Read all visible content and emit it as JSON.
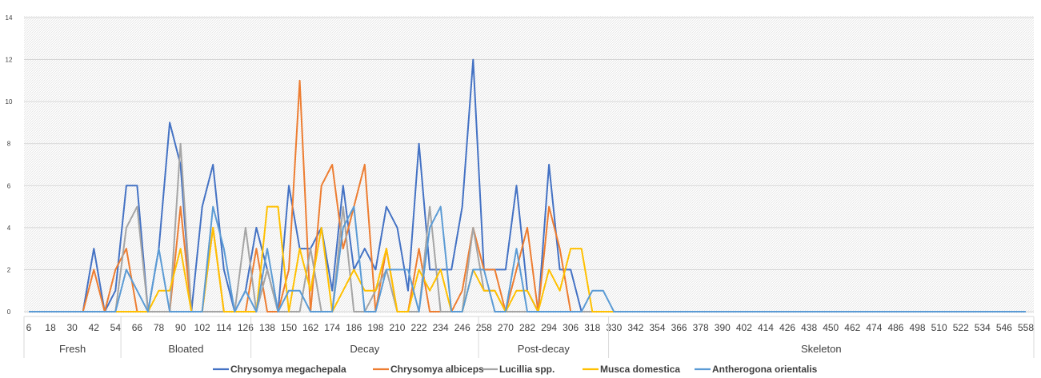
{
  "chart_data": {
    "type": "line",
    "title": "",
    "xlabel": "",
    "ylabel": "",
    "ylim": [
      0,
      14
    ],
    "yticks": [
      "0",
      "2",
      "4",
      "6",
      "8",
      "10",
      "12",
      "14"
    ],
    "x": [
      6,
      12,
      18,
      24,
      30,
      36,
      42,
      48,
      54,
      60,
      66,
      72,
      78,
      84,
      90,
      96,
      102,
      108,
      114,
      120,
      126,
      132,
      138,
      144,
      150,
      156,
      162,
      168,
      174,
      180,
      186,
      192,
      198,
      204,
      210,
      216,
      222,
      228,
      234,
      240,
      246,
      252,
      258,
      264,
      270,
      276,
      282,
      288,
      294,
      300,
      306,
      312,
      318,
      324,
      330,
      336,
      342,
      348,
      354,
      360,
      366,
      372,
      378,
      384,
      390,
      396,
      402,
      408,
      414,
      420,
      426,
      432,
      438,
      444,
      450,
      456,
      462,
      468,
      474,
      480,
      486,
      492,
      498,
      504,
      510,
      516,
      522,
      528,
      534,
      540,
      546,
      552,
      558
    ],
    "xtick_labels": [
      "6",
      "18",
      "30",
      "42",
      "54",
      "66",
      "78",
      "90",
      "102",
      "114",
      "126",
      "138",
      "150",
      "162",
      "174",
      "186",
      "198",
      "210",
      "222",
      "234",
      "246",
      "258",
      "270",
      "282",
      "294",
      "306",
      "318",
      "330",
      "342",
      "354",
      "366",
      "378",
      "390",
      "402",
      "414",
      "426",
      "438",
      "450",
      "462",
      "474",
      "486",
      "498",
      "510",
      "522",
      "534",
      "546",
      "558"
    ],
    "grid": "dense-hatch",
    "legend_position": "bottom",
    "stages": [
      {
        "label": "Fresh",
        "from": 0,
        "to": 8
      },
      {
        "label": "Bloated",
        "from": 9,
        "to": 20
      },
      {
        "label": "Decay",
        "from": 21,
        "to": 41
      },
      {
        "label": "Post-decay",
        "from": 42,
        "to": 53
      },
      {
        "label": "Skeleton",
        "from": 54,
        "to": 92
      }
    ],
    "series": [
      {
        "name": "Chrysomya megachepala",
        "color": "#4472C4",
        "values": [
          0,
          0,
          0,
          0,
          0,
          0,
          3,
          0,
          1,
          6,
          6,
          0,
          3,
          9,
          7,
          0,
          5,
          7,
          2,
          0,
          1,
          4,
          2,
          0,
          6,
          3,
          3,
          4,
          1,
          6,
          2,
          3,
          2,
          5,
          4,
          1,
          8,
          2,
          2,
          2,
          5,
          12,
          2,
          2,
          2,
          6,
          1,
          0,
          7,
          2,
          2,
          0,
          0,
          0,
          0,
          0,
          0,
          0,
          0,
          0,
          0,
          0,
          0,
          0,
          0,
          0,
          0,
          0,
          0,
          0,
          0,
          0,
          0,
          0,
          0,
          0,
          0,
          0,
          0,
          0,
          0,
          0,
          0,
          0,
          0,
          0,
          0,
          0,
          0,
          0,
          0,
          0,
          0
        ]
      },
      {
        "name": "Chrysomya albiceps",
        "color": "#ED7D31",
        "values": [
          0,
          0,
          0,
          0,
          0,
          0,
          2,
          0,
          2,
          3,
          0,
          0,
          0,
          0,
          5,
          0,
          0,
          4,
          0,
          0,
          0,
          3,
          0,
          0,
          2,
          11,
          0,
          6,
          7,
          3,
          5,
          7,
          0,
          3,
          0,
          0,
          3,
          0,
          0,
          0,
          1,
          4,
          2,
          2,
          0,
          2,
          4,
          0,
          5,
          3,
          0,
          0,
          0,
          0,
          0,
          0,
          0,
          0,
          0,
          0,
          0,
          0,
          0,
          0,
          0,
          0,
          0,
          0,
          0,
          0,
          0,
          0,
          0,
          0,
          0,
          0,
          0,
          0,
          0,
          0,
          0,
          0,
          0,
          0,
          0,
          0,
          0,
          0,
          0,
          0,
          0,
          0,
          0
        ]
      },
      {
        "name": "Lucillia spp.",
        "color": "#A5A5A5",
        "values": [
          0,
          0,
          0,
          0,
          0,
          0,
          0,
          0,
          0,
          4,
          5,
          0,
          0,
          0,
          8,
          0,
          0,
          0,
          0,
          0,
          4,
          0,
          2,
          0,
          0,
          0,
          3,
          0,
          0,
          5,
          0,
          0,
          1,
          2,
          0,
          0,
          0,
          5,
          0,
          0,
          0,
          4,
          1,
          1,
          0,
          0,
          0,
          0,
          0,
          0,
          0,
          0,
          0,
          0,
          0,
          0,
          0,
          0,
          0,
          0,
          0,
          0,
          0,
          0,
          0,
          0,
          0,
          0,
          0,
          0,
          0,
          0,
          0,
          0,
          0,
          0,
          0,
          0,
          0,
          0,
          0,
          0,
          0,
          0,
          0,
          0,
          0,
          0,
          0,
          0,
          0,
          0,
          0
        ]
      },
      {
        "name": "Musca domestica",
        "color": "#FFC000",
        "values": [
          0,
          0,
          0,
          0,
          0,
          0,
          0,
          0,
          0,
          0,
          0,
          0,
          1,
          1,
          3,
          0,
          0,
          4,
          0,
          0,
          0,
          0,
          5,
          5,
          0,
          3,
          1,
          4,
          0,
          1,
          2,
          1,
          1,
          3,
          0,
          0,
          2,
          1,
          2,
          0,
          0,
          2,
          1,
          1,
          0,
          1,
          1,
          0,
          2,
          1,
          3,
          3,
          0,
          0,
          0,
          0,
          0,
          0,
          0,
          0,
          0,
          0,
          0,
          0,
          0,
          0,
          0,
          0,
          0,
          0,
          0,
          0,
          0,
          0,
          0,
          0,
          0,
          0,
          0,
          0,
          0,
          0,
          0,
          0,
          0,
          0,
          0,
          0,
          0,
          0,
          0,
          0,
          0
        ]
      },
      {
        "name": "Antherogona orientalis",
        "color": "#5B9BD5",
        "values": [
          0,
          0,
          0,
          0,
          0,
          0,
          0,
          0,
          0,
          2,
          1,
          0,
          3,
          0,
          0,
          0,
          0,
          5,
          3,
          0,
          1,
          0,
          3,
          0,
          1,
          1,
          0,
          0,
          0,
          4,
          5,
          0,
          0,
          2,
          2,
          2,
          0,
          4,
          5,
          0,
          0,
          2,
          2,
          0,
          0,
          3,
          0,
          0,
          0,
          0,
          0,
          0,
          1,
          1,
          0,
          0,
          0,
          0,
          0,
          0,
          0,
          0,
          0,
          0,
          0,
          0,
          0,
          0,
          0,
          0,
          0,
          0,
          0,
          0,
          0,
          0,
          0,
          0,
          0,
          0,
          0,
          0,
          0,
          0,
          0,
          0,
          0,
          0,
          0,
          0,
          0,
          0,
          0
        ]
      }
    ]
  }
}
